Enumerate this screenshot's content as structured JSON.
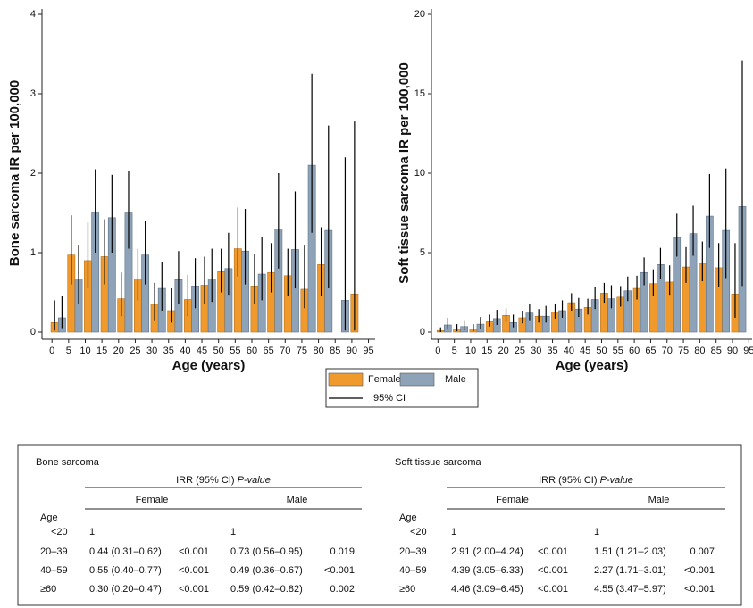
{
  "chart_data": [
    {
      "type": "bar",
      "y_label": "Bone sarcoma IR per 100,000",
      "x_label": "Age (years)",
      "x": [
        0,
        5,
        10,
        15,
        20,
        25,
        30,
        35,
        40,
        45,
        50,
        55,
        60,
        65,
        70,
        75,
        80,
        85,
        90
      ],
      "xlim": [
        -3,
        97
      ],
      "xticks": [
        0,
        5,
        10,
        15,
        20,
        25,
        30,
        35,
        40,
        45,
        50,
        55,
        60,
        65,
        70,
        75,
        80,
        85,
        90,
        95
      ],
      "ylim": [
        0,
        4
      ],
      "yticks": [
        0,
        1,
        2,
        3,
        4
      ],
      "legend_ci": "95% CI",
      "series": [
        {
          "name": "Female",
          "color": "#f09a2e",
          "values": [
            0.12,
            0.97,
            0.9,
            0.95,
            0.42,
            0.67,
            0.35,
            0.27,
            0.41,
            0.59,
            0.76,
            1.05,
            0.58,
            0.75,
            0.71,
            0.54,
            0.85,
            0,
            0.48
          ],
          "ci_low": [
            0.02,
            0.6,
            0.55,
            0.6,
            0.2,
            0.4,
            0.15,
            0.12,
            0.2,
            0.35,
            0.5,
            0.7,
            0.35,
            0.5,
            0.45,
            0.3,
            0.45,
            null,
            0.02
          ],
          "ci_high": [
            0.4,
            1.47,
            1.38,
            1.42,
            0.75,
            1.05,
            0.62,
            0.55,
            0.72,
            0.95,
            1.05,
            1.57,
            0.98,
            1.12,
            1.05,
            1.1,
            1.32,
            null,
            2.65
          ]
        },
        {
          "name": "Male",
          "color": "#8fa3b8",
          "values": [
            0.18,
            0.67,
            1.5,
            1.44,
            1.5,
            0.97,
            0.55,
            0.66,
            0.58,
            0.67,
            0.8,
            1.02,
            0.73,
            1.3,
            1.04,
            2.1,
            1.28,
            0.4,
            null
          ],
          "ci_low": [
            0.05,
            0.35,
            1.0,
            1.0,
            1.05,
            0.6,
            0.27,
            0.35,
            0.3,
            0.38,
            0.47,
            0.6,
            0.4,
            0.8,
            0.55,
            1.25,
            0.55,
            0.02,
            null
          ],
          "ci_high": [
            0.45,
            1.1,
            2.05,
            1.98,
            2.03,
            1.4,
            0.88,
            1.02,
            0.93,
            1.05,
            1.25,
            1.55,
            1.2,
            2.0,
            1.77,
            3.25,
            2.6,
            2.2,
            null
          ]
        }
      ]
    },
    {
      "type": "bar",
      "y_label": "Soft tissue sarcoma IR per 100,000",
      "x_label": "Age (years)",
      "x": [
        0,
        5,
        10,
        15,
        20,
        25,
        30,
        35,
        40,
        45,
        50,
        55,
        60,
        65,
        70,
        75,
        80,
        85,
        90
      ],
      "xlim": [
        -2,
        96
      ],
      "xticks": [
        0,
        5,
        10,
        15,
        20,
        25,
        30,
        35,
        40,
        45,
        50,
        55,
        60,
        65,
        70,
        75,
        80,
        85,
        90,
        95
      ],
      "ylim": [
        0,
        20
      ],
      "yticks": [
        0,
        5,
        10,
        15,
        20
      ],
      "series": [
        {
          "name": "Female",
          "color": "#f09a2e",
          "values": [
            0.1,
            0.2,
            0.2,
            0.65,
            1.05,
            0.9,
            1.0,
            1.25,
            1.85,
            1.55,
            2.45,
            2.2,
            2.75,
            3.05,
            3.15,
            4.1,
            4.3,
            4.05,
            2.4
          ],
          "ci_low": [
            0,
            0.05,
            0.05,
            0.35,
            0.65,
            0.55,
            0.6,
            0.85,
            1.35,
            1.1,
            1.85,
            1.6,
            2.05,
            2.3,
            2.35,
            3.1,
            3.2,
            2.85,
            0.9
          ],
          "ci_high": [
            0.3,
            0.5,
            0.5,
            1.1,
            1.5,
            1.35,
            1.45,
            1.8,
            2.45,
            2.1,
            3.1,
            2.9,
            3.55,
            3.95,
            4.2,
            5.35,
            5.7,
            5.6,
            5.6
          ]
        },
        {
          "name": "Male",
          "color": "#8fa3b8",
          "values": [
            0.45,
            0.35,
            0.5,
            0.85,
            0.6,
            1.2,
            1.0,
            1.35,
            1.45,
            2.05,
            2.1,
            2.6,
            3.75,
            4.25,
            5.95,
            6.2,
            7.3,
            6.4,
            7.9
          ],
          "ci_low": [
            0.15,
            0.1,
            0.2,
            0.45,
            0.3,
            0.75,
            0.6,
            0.9,
            0.95,
            1.45,
            1.5,
            1.95,
            2.95,
            3.35,
            4.75,
            4.8,
            5.3,
            3.4,
            2.9
          ],
          "ci_high": [
            0.9,
            0.75,
            0.95,
            1.4,
            1.1,
            1.8,
            1.65,
            2.0,
            2.15,
            2.85,
            2.95,
            3.5,
            4.7,
            5.3,
            7.45,
            7.95,
            9.95,
            10.3,
            17.1
          ]
        }
      ]
    }
  ],
  "table": {
    "panels": [
      {
        "title": "Bone sarcoma",
        "header": "IRR (95% CI) ",
        "header_italic": "P-value",
        "groups": [
          "Female",
          "Male"
        ],
        "row_header": "Age",
        "rows": [
          [
            "<20",
            "1",
            null,
            "1",
            null
          ],
          [
            "20–39",
            "0.44 (0.31–0.62)",
            "<0.001",
            "0.73 (0.56–0.95)",
            "0.019"
          ],
          [
            "40–59",
            "0.55 (0.40–0.77)",
            "<0.001",
            "0.49 (0.36–0.67)",
            "<0.001"
          ],
          [
            "≥60",
            "0.30 (0.20–0.47)",
            "<0.001",
            "0.59 (0.42–0.82)",
            "0.002"
          ]
        ]
      },
      {
        "title": "Soft tissue sarcoma",
        "header": "IRR (95% CI) ",
        "header_italic": "P-value",
        "groups": [
          "Female",
          "Male"
        ],
        "row_header": "Age",
        "rows": [
          [
            "<20",
            "1",
            null,
            "1",
            null
          ],
          [
            "20–39",
            "2.91 (2.00–4.24)",
            "<0.001",
            "1.51 (1.21–2.03)",
            "0.007"
          ],
          [
            "40–59",
            "4.39 (3.05–6.33)",
            "<0.001",
            "2.27 (1.71–3.01)",
            "<0.001"
          ],
          [
            "≥60",
            "4.46 (3.09–6.45)",
            "<0.001",
            "4.55 (3.47–5.97)",
            "<0.001"
          ]
        ]
      }
    ]
  }
}
